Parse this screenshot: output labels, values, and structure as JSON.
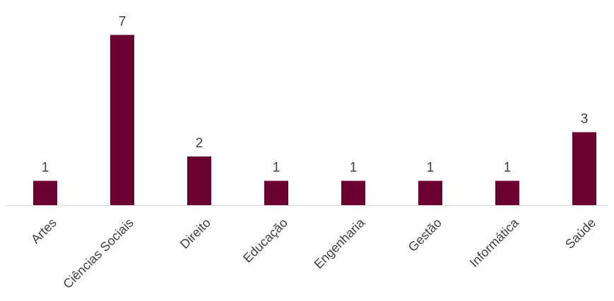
{
  "chart_data": {
    "type": "bar",
    "title": "",
    "xlabel": "",
    "ylabel": "",
    "categories": [
      "Artes",
      "Ciências Sociais",
      "Direito",
      "Educação",
      "Engenharia",
      "Gestão",
      "Informática",
      "Saúde"
    ],
    "values": [
      1,
      7,
      2,
      1,
      1,
      1,
      1,
      3
    ],
    "ylim": [
      0,
      7
    ],
    "grid": false,
    "legend": "none",
    "data_labels": true,
    "bar_color": "#6B0032",
    "axis_color": "#D9D9D9",
    "text_color": "#404040"
  }
}
